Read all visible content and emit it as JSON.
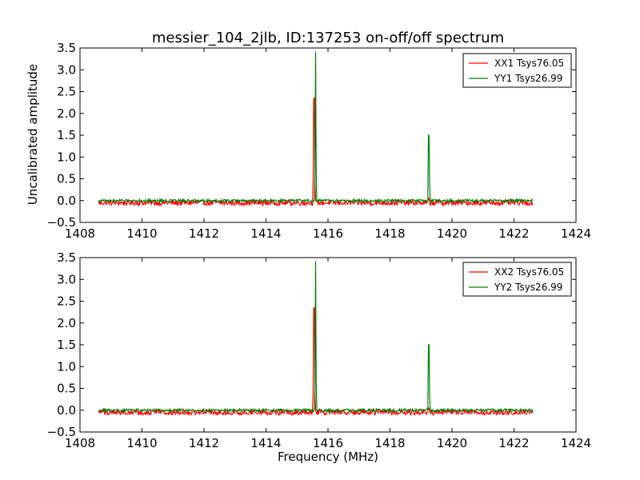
{
  "title": "messier_104_2jlb, ID:137253 on-off/off spectrum",
  "chart_data": [
    {
      "type": "line",
      "title": "messier_104_2jlb, ID:137253 on-off/off spectrum",
      "xlabel": "",
      "ylabel": "Uncalibrated amplitude",
      "xlim": [
        1408,
        1424
      ],
      "ylim": [
        -0.5,
        3.5
      ],
      "xticks": [
        "1408",
        "1410",
        "1412",
        "1414",
        "1416",
        "1418",
        "1420",
        "1422",
        "1424"
      ],
      "yticks": [
        "−0.5",
        "0.0",
        "0.5",
        "1.0",
        "1.5",
        "2.0",
        "2.5",
        "3.0",
        "3.5"
      ],
      "grid": false,
      "legend_position": "top-right",
      "series": [
        {
          "name": "XX1 Tsys76.05",
          "color": "#ff0000",
          "x_range": [
            1408.6,
            1422.6
          ],
          "baseline": -0.05,
          "noise": 0.06,
          "peaks": [
            {
              "x": 1415.55,
              "y": 2.35
            },
            {
              "x": 1419.25,
              "y": 0.05
            }
          ]
        },
        {
          "name": "YY1 Tsys26.99",
          "color": "#008000",
          "x_range": [
            1408.6,
            1422.6
          ],
          "baseline": 0.0,
          "noise": 0.03,
          "peaks": [
            {
              "x": 1415.6,
              "y": 3.42
            },
            {
              "x": 1419.25,
              "y": 1.5
            }
          ]
        }
      ]
    },
    {
      "type": "line",
      "title": "",
      "xlabel": "Frequency (MHz)",
      "ylabel": "",
      "xlim": [
        1408,
        1424
      ],
      "ylim": [
        -0.5,
        3.5
      ],
      "xticks": [
        "1408",
        "1410",
        "1412",
        "1414",
        "1416",
        "1418",
        "1420",
        "1422",
        "1424"
      ],
      "yticks": [
        "−0.5",
        "0.0",
        "0.5",
        "1.0",
        "1.5",
        "2.0",
        "2.5",
        "3.0",
        "3.5"
      ],
      "grid": false,
      "legend_position": "top-right",
      "series": [
        {
          "name": "XX2 Tsys76.05",
          "color": "#ff0000",
          "x_range": [
            1408.6,
            1422.6
          ],
          "baseline": -0.05,
          "noise": 0.06,
          "peaks": [
            {
              "x": 1415.55,
              "y": 2.35
            },
            {
              "x": 1419.25,
              "y": 0.05
            }
          ]
        },
        {
          "name": "YY2 Tsys26.99",
          "color": "#008000",
          "x_range": [
            1408.6,
            1422.6
          ],
          "baseline": 0.0,
          "noise": 0.03,
          "peaks": [
            {
              "x": 1415.6,
              "y": 3.42
            },
            {
              "x": 1419.25,
              "y": 1.5
            }
          ]
        }
      ]
    }
  ]
}
